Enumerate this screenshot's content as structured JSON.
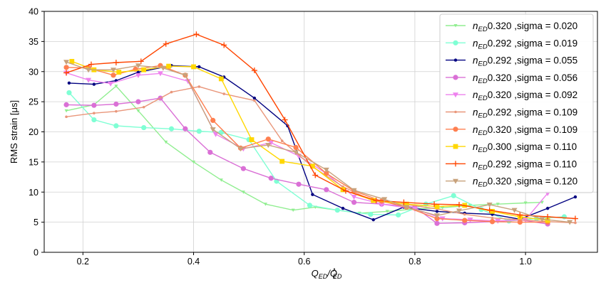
{
  "chart_data": {
    "type": "line",
    "title": "",
    "xlabel": "Q_ED/Q^_ED",
    "xlabel_parts": {
      "main": "Q",
      "sub1": "ED",
      "sep": "/Q",
      "sup2": "∧",
      "sub2": "ED"
    },
    "ylabel": "RMS strain [μs]",
    "xlim": [
      0.13,
      1.13
    ],
    "ylim": [
      0,
      40
    ],
    "xticks": [
      0.2,
      0.4,
      0.6,
      0.8,
      1.0
    ],
    "xtick_labels": [
      "0.2",
      "0.4",
      "0.6",
      "0.8",
      "1.0"
    ],
    "yticks": [
      0,
      5,
      10,
      15,
      20,
      25,
      30,
      35,
      40
    ],
    "ytick_labels": [
      "0",
      "5",
      "10",
      "15",
      "20",
      "25",
      "30",
      "35",
      "40"
    ],
    "grid": true,
    "legend_position": "top-right",
    "series": [
      {
        "name": "n_ED0.320 ,sigma = 0.020",
        "prefix": "0.320 ,sigma = 0.020",
        "color": "#90ee90",
        "marker": "tri-down-thin",
        "x": [
          0.17,
          0.22,
          0.26,
          0.3,
          0.35,
          0.4,
          0.45,
          0.49,
          0.53,
          0.58,
          0.62,
          0.66,
          0.7,
          0.75,
          0.8,
          0.85,
          0.9,
          0.95,
          1.0,
          1.03
        ],
        "y": [
          23.5,
          24.5,
          27.6,
          23.5,
          18.3,
          15.0,
          12.0,
          10.0,
          8.0,
          7.0,
          7.5,
          7.0,
          6.5,
          6.8,
          7.2,
          7.4,
          7.8,
          8.0,
          8.2,
          8.3
        ]
      },
      {
        "name": "n_ED0.292 ,sigma = 0.019",
        "prefix": "0.292 ,sigma = 0.019",
        "color": "#7fffd4",
        "marker": "circle",
        "x": [
          0.175,
          0.22,
          0.26,
          0.31,
          0.36,
          0.41,
          0.45,
          0.5,
          0.55,
          0.61,
          0.66,
          0.72,
          0.77,
          0.82,
          0.87,
          0.92,
          0.97,
          1.02,
          1.07
        ],
        "y": [
          26.5,
          22.0,
          21.0,
          20.7,
          20.5,
          20.1,
          19.9,
          18.7,
          11.8,
          7.8,
          7.0,
          6.3,
          6.2,
          8.0,
          9.4,
          7.1,
          5.2,
          5.6,
          5.9
        ]
      },
      {
        "name": "n_ED0.292 ,sigma = 0.055",
        "prefix": "0.292 ,sigma = 0.055",
        "color": "#000080",
        "marker": "dot",
        "x": [
          0.175,
          0.22,
          0.26,
          0.3,
          0.36,
          0.41,
          0.455,
          0.51,
          0.57,
          0.615,
          0.67,
          0.725,
          0.78,
          0.84,
          0.89,
          0.94,
          0.99,
          1.04,
          1.09
        ],
        "y": [
          28.1,
          27.9,
          28.5,
          29.9,
          31.0,
          30.8,
          29.1,
          25.6,
          21.0,
          9.6,
          7.3,
          5.4,
          7.5,
          6.8,
          6.5,
          6.3,
          5.5,
          7.3,
          9.2
        ]
      },
      {
        "name": "n_ED0.320 ,sigma = 0.056",
        "prefix": "0.320 ,sigma = 0.056",
        "color": "#da70d6",
        "marker": "circle",
        "x": [
          0.17,
          0.22,
          0.26,
          0.3,
          0.34,
          0.385,
          0.43,
          0.49,
          0.54,
          0.59,
          0.64,
          0.69,
          0.74,
          0.8,
          0.84,
          0.89,
          0.94,
          0.99,
          1.04
        ],
        "y": [
          24.5,
          24.4,
          24.6,
          25.0,
          25.6,
          20.5,
          16.6,
          13.9,
          12.3,
          11.3,
          10.4,
          8.3,
          8.0,
          7.5,
          4.8,
          4.9,
          5.1,
          5.4,
          4.7
        ]
      },
      {
        "name": "n_ED0.320 ,sigma = 0.092",
        "prefix": "0.320 ,sigma = 0.092",
        "color": "#ee82ee",
        "marker": "tri-down",
        "x": [
          0.17,
          0.21,
          0.25,
          0.3,
          0.34,
          0.39,
          0.44,
          0.49,
          0.54,
          0.59,
          0.64,
          0.69,
          0.74,
          0.8,
          0.85,
          0.9,
          0.95,
          1.0,
          1.04
        ],
        "y": [
          29.8,
          28.6,
          28.0,
          29.4,
          29.7,
          28.4,
          19.6,
          17.2,
          18.2,
          16.0,
          13.1,
          9.2,
          8.0,
          7.2,
          5.6,
          5.4,
          5.2,
          5.4,
          9.8
        ]
      },
      {
        "name": "n_ED0.292 ,sigma = 0.109",
        "prefix": "0.292 ,sigma = 0.109",
        "color": "#e9967a",
        "marker": "small-dot",
        "x": [
          0.17,
          0.22,
          0.26,
          0.31,
          0.36,
          0.41,
          0.455,
          0.51,
          0.56,
          0.615,
          0.67,
          0.725,
          0.78,
          0.84,
          0.89,
          0.94,
          0.99,
          1.04,
          1.09
        ],
        "y": [
          22.5,
          23.1,
          23.4,
          24.1,
          26.6,
          27.5,
          26.3,
          25.2,
          18.5,
          14.2,
          10.9,
          8.5,
          8.0,
          7.2,
          6.3,
          5.7,
          5.4,
          5.1,
          4.9
        ]
      },
      {
        "name": "n_ED0.320 ,sigma = 0.109",
        "prefix": "0.320 ,sigma = 0.109",
        "color": "#ff7f50",
        "marker": "circle",
        "x": [
          0.17,
          0.21,
          0.255,
          0.295,
          0.34,
          0.385,
          0.435,
          0.485,
          0.535,
          0.585,
          0.64,
          0.69,
          0.74,
          0.785,
          0.84,
          0.89,
          0.94,
          0.99,
          1.04
        ],
        "y": [
          30.7,
          30.6,
          29.4,
          30.4,
          31.0,
          29.4,
          21.9,
          17.3,
          18.8,
          17.4,
          13.1,
          10.2,
          8.5,
          7.5,
          5.6,
          5.3,
          5.1,
          5.0,
          5.0
        ]
      },
      {
        "name": "n_ED0.300 ,sigma = 0.110",
        "prefix": "0.300 ,sigma = 0.110",
        "color": "#ffd700",
        "marker": "square",
        "x": [
          0.18,
          0.22,
          0.265,
          0.31,
          0.355,
          0.4,
          0.45,
          0.505,
          0.56,
          0.615,
          0.67,
          0.725,
          0.785,
          0.84,
          0.89,
          0.94,
          0.99,
          1.04
        ],
        "y": [
          31.7,
          30.3,
          29.9,
          30.3,
          30.9,
          30.8,
          28.8,
          18.7,
          15.1,
          14.3,
          10.4,
          8.6,
          8.0,
          7.6,
          7.8,
          6.8,
          5.9,
          5.3
        ]
      },
      {
        "name": "n_ED0.292 ,sigma = 0.110",
        "prefix": "0.292 ,sigma = 0.110",
        "color": "#ff4500",
        "marker": "plus",
        "x": [
          0.17,
          0.215,
          0.26,
          0.305,
          0.35,
          0.405,
          0.455,
          0.51,
          0.565,
          0.62,
          0.675,
          0.73,
          0.78,
          0.835,
          0.88,
          0.935,
          0.99,
          1.04,
          1.09
        ],
        "y": [
          29.8,
          31.2,
          31.5,
          31.7,
          34.6,
          36.2,
          34.4,
          30.2,
          22.0,
          12.8,
          10.2,
          8.6,
          8.3,
          8.0,
          7.9,
          7.0,
          6.2,
          5.9,
          5.6
        ]
      },
      {
        "name": "n_ED0.320 ,sigma = 0.120",
        "prefix": "0.320 ,sigma = 0.120",
        "color": "#c8a27c",
        "marker": "tri-down",
        "x": [
          0.17,
          0.21,
          0.255,
          0.3,
          0.345,
          0.385,
          0.435,
          0.485,
          0.535,
          0.585,
          0.64,
          0.69,
          0.745,
          0.785,
          0.84,
          0.88,
          0.935,
          0.98,
          1.03,
          1.08
        ],
        "y": [
          31.6,
          30.3,
          30.3,
          31.0,
          30.6,
          29.4,
          20.4,
          17.2,
          17.8,
          16.6,
          13.7,
          10.3,
          8.8,
          7.5,
          6.1,
          6.9,
          7.9,
          7.0,
          5.5,
          5.0
        ]
      }
    ]
  }
}
